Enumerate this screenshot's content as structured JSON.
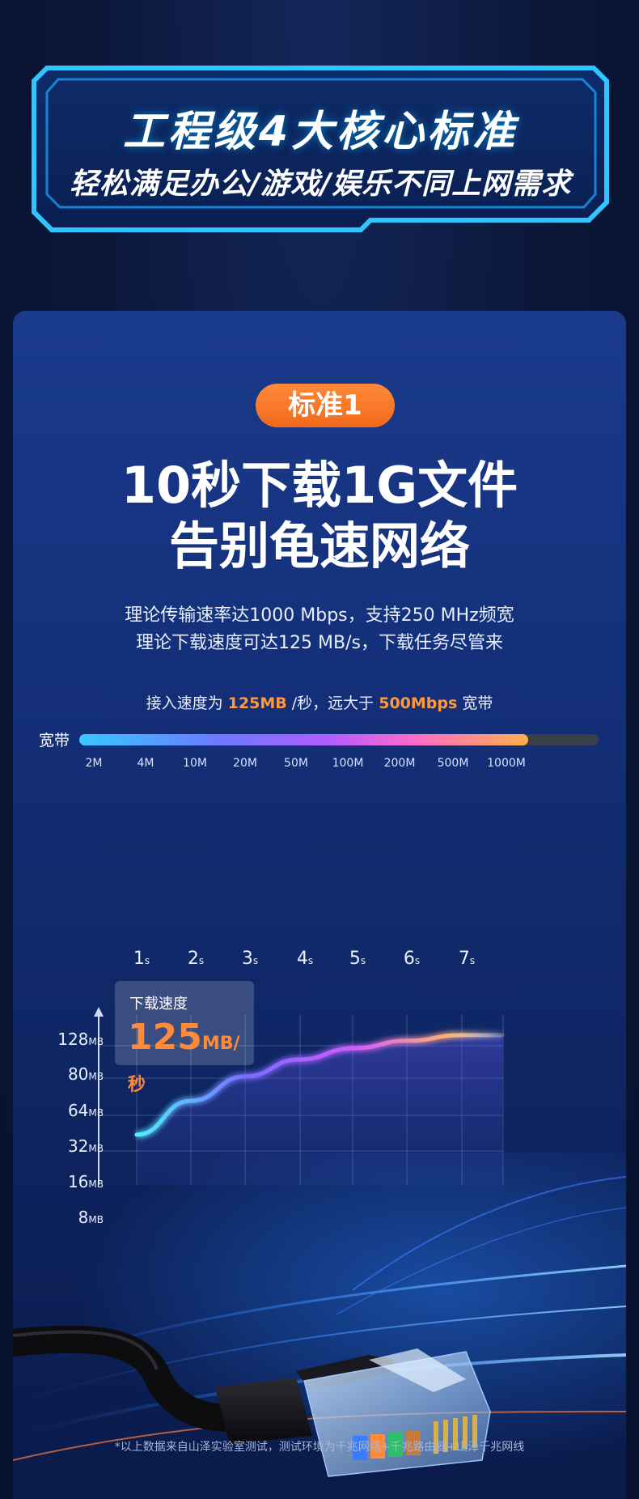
{
  "banner": {
    "title": "工程级4大核心标准",
    "subtitle": "轻松满足办公/游戏/娱乐不同上网需求"
  },
  "card": {
    "badge": "标准1",
    "headline_line1": "10秒下载1G文件",
    "headline_line2": "告别龟速网络",
    "desc_line1": "理论传输速率达1000 Mbps，支持250 MHz频宽",
    "desc_line2": "理论下载速度可达125 MB/s，下载任务尽管来",
    "speed_note": {
      "prefix": "接入速度为",
      "speed": "125MB",
      "middle": "/秒，远大于",
      "bandwidth": "500Mbps",
      "suffix": "宽带"
    },
    "bandwidth_bar": {
      "label": "宽带",
      "ticks": [
        "2M",
        "4M",
        "10M",
        "20M",
        "50M",
        "100M",
        "200M",
        "500M",
        "1000M"
      ],
      "filled_fraction": 0.865
    },
    "chart_data": {
      "type": "line",
      "y_ticks": [
        {
          "value": "128",
          "unit": "MB"
        },
        {
          "value": "80",
          "unit": "MB"
        },
        {
          "value": "64",
          "unit": "MB"
        },
        {
          "value": "32",
          "unit": "MB"
        },
        {
          "value": "16",
          "unit": "MB"
        },
        {
          "value": "8",
          "unit": "MB"
        }
      ],
      "x_ticks": [
        {
          "value": "1",
          "unit": "s"
        },
        {
          "value": "2",
          "unit": "s"
        },
        {
          "value": "3",
          "unit": "s"
        },
        {
          "value": "4",
          "unit": "s"
        },
        {
          "value": "5",
          "unit": "s"
        },
        {
          "value": "6",
          "unit": "s"
        },
        {
          "value": "7",
          "unit": "s"
        }
      ],
      "series": [
        {
          "x": [
            1,
            2,
            3,
            4,
            5,
            6,
            7
          ],
          "y": [
            72,
            90,
            103,
            112,
            118,
            122,
            125
          ]
        }
      ],
      "grid": true
    },
    "download_box": {
      "title": "下载速度",
      "value": "125",
      "unit": "MB/秒"
    },
    "footnote": "*以上数据来自山泽实验室测试，测试环境为千兆网络+千兆路由器+山泽千兆网线"
  },
  "colors": {
    "accent": "#ff8a3a",
    "banner_border": "#2fc6ff",
    "card_top": "#1a3a8c"
  }
}
